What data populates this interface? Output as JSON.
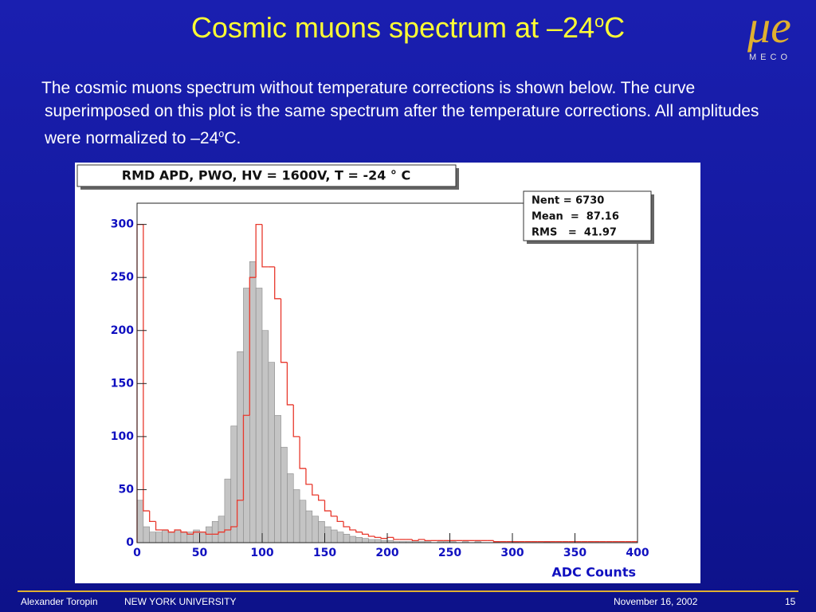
{
  "slide_title": {
    "text": "Cosmic muons spectrum at –24",
    "sup": "o",
    "end": "C"
  },
  "body": {
    "text": "The cosmic muons spectrum without temperature corrections is shown below. The curve superimposed on this plot is the same spectrum after the temperature corrections. All amplitudes were normalized to –24",
    "sup": "o",
    "end": "C."
  },
  "logo": {
    "symbol": "μe",
    "name": "MECO"
  },
  "footer": {
    "author": "Alexander Toropin",
    "institution": "NEW YORK UNIVERSITY",
    "date": "November 16, 2002",
    "page": "15"
  },
  "chart_data": {
    "type": "histogram",
    "title": "RMD APD, PWO, HV = 1600V, T = -24 ° C",
    "xlabel": "ADC Counts",
    "stats": [
      "Nent = 6730",
      "Mean  =  87.16",
      "RMS   =  41.97"
    ],
    "bins": [
      0,
      5,
      10,
      15,
      20,
      25,
      30,
      35,
      40,
      45,
      50,
      55,
      60,
      65,
      70,
      75,
      80,
      85,
      90,
      95,
      100,
      105,
      110,
      115,
      120,
      125,
      130,
      135,
      140,
      145,
      150,
      155,
      160,
      165,
      170,
      175,
      180,
      185,
      190,
      195,
      200,
      205,
      210,
      215,
      220,
      225,
      230,
      235,
      240,
      245,
      250,
      255,
      260,
      265,
      270,
      275,
      280,
      285,
      290,
      295,
      300,
      305,
      310,
      315,
      320,
      325,
      330,
      335,
      340,
      345,
      350,
      355,
      360,
      365,
      370,
      375,
      380,
      385,
      390,
      395,
      400
    ],
    "series": [
      {
        "color": "#c4c4c4",
        "values": [
          40,
          15,
          10,
          10,
          12,
          10,
          12,
          10,
          10,
          12,
          10,
          15,
          20,
          25,
          60,
          110,
          180,
          240,
          265,
          240,
          200,
          170,
          120,
          90,
          65,
          50,
          40,
          30,
          25,
          20,
          15,
          12,
          10,
          8,
          6,
          5,
          4,
          3,
          3,
          2,
          2,
          1,
          1,
          1,
          1,
          1,
          1,
          0,
          1,
          1,
          1,
          0,
          1,
          0,
          1,
          0,
          0,
          1,
          0,
          0,
          1,
          0,
          0,
          0,
          0,
          1,
          0,
          0,
          0,
          0,
          0,
          0,
          0,
          0,
          0,
          0,
          0,
          0,
          0,
          0
        ]
      },
      {
        "color": "#e8382c",
        "values": [
          300,
          30,
          20,
          12,
          12,
          10,
          12,
          10,
          8,
          10,
          10,
          8,
          8,
          10,
          12,
          15,
          40,
          120,
          250,
          300,
          260,
          260,
          230,
          170,
          130,
          100,
          70,
          55,
          45,
          40,
          30,
          25,
          20,
          15,
          12,
          10,
          8,
          6,
          5,
          4,
          5,
          3,
          3,
          3,
          2,
          3,
          2,
          2,
          2,
          2,
          2,
          2,
          2,
          2,
          2,
          2,
          2,
          1,
          1,
          1,
          1,
          1,
          1,
          1,
          1,
          1,
          1,
          1,
          1,
          1,
          1,
          1,
          1,
          1,
          1,
          1,
          1,
          1,
          1,
          1
        ]
      }
    ],
    "xlim": [
      0,
      400
    ],
    "xticks": [
      0,
      50,
      100,
      150,
      200,
      250,
      300,
      350,
      400
    ],
    "ylim": [
      0,
      320
    ],
    "yticks": [
      0,
      50,
      100,
      150,
      200,
      250,
      300
    ]
  }
}
